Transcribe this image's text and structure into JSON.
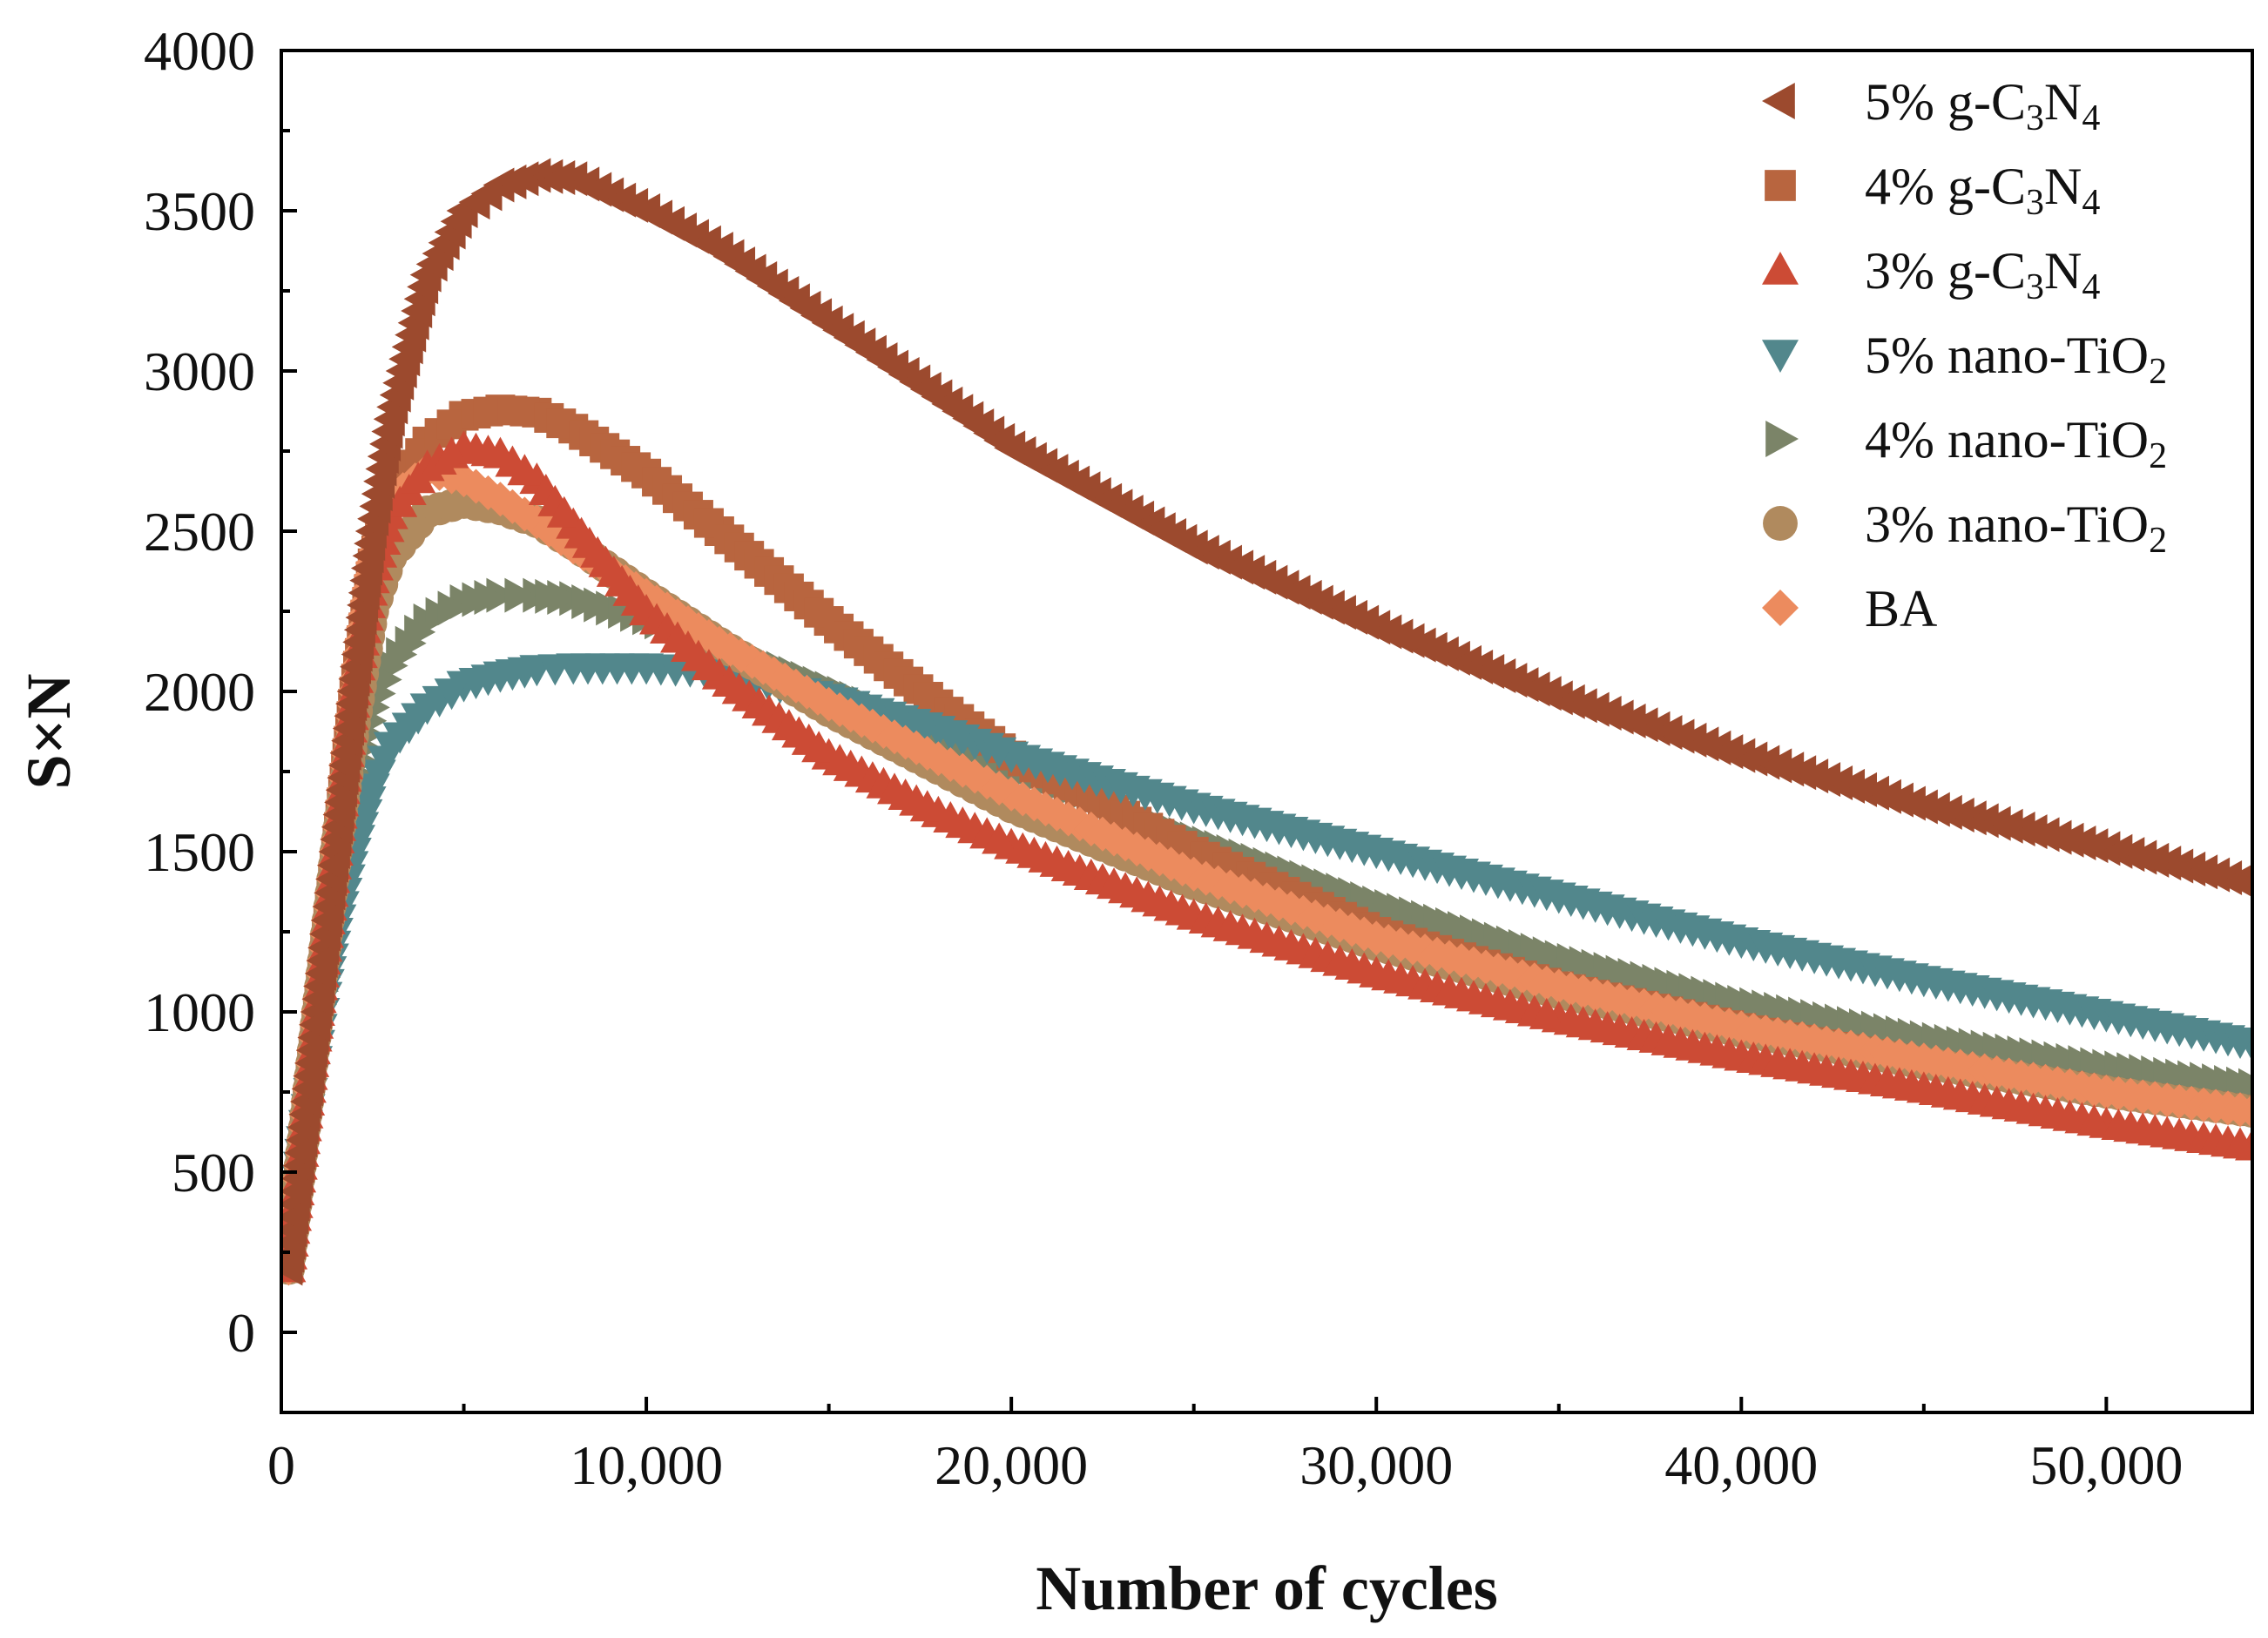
{
  "chart_data": {
    "type": "scatter",
    "title": "",
    "xlabel": "Number of cycles",
    "ylabel": "S×N",
    "xlim": [
      0,
      54000
    ],
    "ylim": [
      -250,
      4000
    ],
    "x_ticks": [
      0,
      10000,
      20000,
      30000,
      40000,
      50000
    ],
    "x_tick_labels": [
      "0",
      "10,000",
      "20,000",
      "30,000",
      "40,000",
      "50,000"
    ],
    "y_ticks": [
      0,
      500,
      1000,
      1500,
      2000,
      2500,
      3000,
      3500,
      4000
    ],
    "y_tick_labels": [
      "0",
      "500",
      "1000",
      "1500",
      "2000",
      "2500",
      "3000",
      "3500",
      "4000"
    ],
    "legend_position": "top-right",
    "grid": false,
    "series": [
      {
        "name": "5% g-C3N4",
        "name_main": "5% g-C",
        "name_sub1": "3",
        "name_mid": "N",
        "name_sub2": "4",
        "marker": "triangle-left",
        "color": "#9c4a2e",
        "x": [
          200,
          400,
          600,
          800,
          1000,
          1200,
          1500,
          2000,
          2500,
          3000,
          4000,
          5000,
          6000,
          7000,
          8000,
          10000,
          12000,
          15000,
          18000,
          20000,
          25000,
          30000,
          35000,
          40000,
          45000,
          50000,
          54000
        ],
        "y": [
          200,
          400,
          600,
          800,
          1000,
          1200,
          1500,
          2000,
          2500,
          2850,
          3300,
          3500,
          3580,
          3610,
          3600,
          3500,
          3380,
          3150,
          2920,
          2760,
          2450,
          2200,
          1980,
          1800,
          1640,
          1510,
          1400
        ]
      },
      {
        "name": "4% g-C3N4",
        "name_main": "4% g-C",
        "name_sub1": "3",
        "name_mid": "N",
        "name_sub2": "4",
        "marker": "square",
        "color": "#b8653f",
        "x": [
          200,
          400,
          600,
          800,
          1000,
          1200,
          1500,
          2000,
          2500,
          3000,
          4000,
          5000,
          6000,
          7000,
          8000,
          10000,
          12000,
          15000,
          18000,
          20000,
          25000,
          30000,
          35000,
          40000,
          45000,
          50000,
          54000
        ],
        "y": [
          200,
          400,
          600,
          800,
          1000,
          1200,
          1500,
          2000,
          2400,
          2600,
          2780,
          2860,
          2880,
          2870,
          2820,
          2680,
          2500,
          2220,
          1960,
          1800,
          1500,
          1250,
          1080,
          950,
          840,
          750,
          690
        ]
      },
      {
        "name": "3% g-C3N4",
        "name_main": "3% g-C",
        "name_sub1": "3",
        "name_mid": "N",
        "name_sub2": "4",
        "marker": "triangle-up",
        "color": "#cc4b35",
        "x": [
          200,
          400,
          600,
          800,
          1000,
          1200,
          1500,
          2000,
          2500,
          3000,
          4000,
          5000,
          6000,
          7000,
          8000,
          10000,
          12000,
          15000,
          18000,
          20000,
          25000,
          30000,
          35000,
          40000,
          45000,
          50000,
          54000
        ],
        "y": [
          200,
          400,
          600,
          800,
          1000,
          1200,
          1500,
          2000,
          2350,
          2550,
          2700,
          2760,
          2740,
          2660,
          2520,
          2250,
          2050,
          1800,
          1620,
          1520,
          1300,
          1120,
          980,
          860,
          760,
          650,
          580
        ]
      },
      {
        "name": "5% nano-TiO2",
        "name_main": "5% nano-TiO",
        "name_sub1": "2",
        "name_mid": "",
        "name_sub2": "",
        "marker": "triangle-down",
        "color": "#52878c",
        "x": [
          200,
          400,
          600,
          800,
          1000,
          1200,
          1500,
          2000,
          2500,
          3000,
          4000,
          5000,
          6000,
          7000,
          8000,
          10000,
          12000,
          15000,
          18000,
          20000,
          25000,
          30000,
          35000,
          40000,
          45000,
          50000,
          54000
        ],
        "y": [
          200,
          400,
          600,
          750,
          900,
          1050,
          1250,
          1500,
          1700,
          1830,
          1950,
          2020,
          2050,
          2070,
          2075,
          2075,
          2060,
          1980,
          1880,
          1800,
          1640,
          1500,
          1360,
          1220,
          1100,
          990,
          900
        ]
      },
      {
        "name": "4% nano-TiO2",
        "name_main": "4% nano-TiO",
        "name_sub1": "2",
        "name_mid": "",
        "name_sub2": "",
        "marker": "triangle-right",
        "color": "#7b8468",
        "x": [
          200,
          400,
          600,
          800,
          1000,
          1200,
          1500,
          2000,
          2500,
          3000,
          4000,
          5000,
          6000,
          7000,
          8000,
          10000,
          12000,
          15000,
          18000,
          20000,
          25000,
          30000,
          35000,
          40000,
          45000,
          50000,
          54000
        ],
        "y": [
          200,
          400,
          600,
          800,
          980,
          1150,
          1400,
          1700,
          1950,
          2080,
          2220,
          2280,
          2300,
          2300,
          2290,
          2230,
          2150,
          2010,
          1870,
          1760,
          1540,
          1340,
          1170,
          1030,
          920,
          830,
          770
        ]
      },
      {
        "name": "3% nano-TiO2",
        "name_main": "3% nano-TiO",
        "name_sub1": "2",
        "name_mid": "",
        "name_sub2": "",
        "marker": "circle",
        "color": "#b08a5e",
        "x": [
          200,
          400,
          600,
          800,
          1000,
          1200,
          1500,
          2000,
          2500,
          3000,
          4000,
          5000,
          6000,
          7000,
          8000,
          10000,
          12000,
          15000,
          18000,
          20000,
          25000,
          30000,
          35000,
          40000,
          45000,
          50000,
          54000
        ],
        "y": [
          200,
          400,
          600,
          800,
          1000,
          1200,
          1500,
          1900,
          2250,
          2420,
          2560,
          2590,
          2570,
          2530,
          2460,
          2300,
          2150,
          1940,
          1760,
          1640,
          1400,
          1210,
          1060,
          940,
          840,
          750,
          690
        ]
      },
      {
        "name": "BA",
        "name_main": "BA",
        "name_sub1": "",
        "name_mid": "",
        "name_sub2": "",
        "marker": "diamond",
        "color": "#ec8b5e",
        "x": [
          200,
          400,
          600,
          800,
          1000,
          1200,
          1500,
          2000,
          2500,
          3000,
          4000,
          5000,
          6000,
          7000,
          8000,
          10000,
          12000,
          15000,
          18000,
          20000,
          25000,
          30000,
          35000,
          40000,
          45000,
          50000,
          54000
        ],
        "y": [
          200,
          400,
          600,
          800,
          1000,
          1200,
          1500,
          2000,
          2400,
          2600,
          2690,
          2660,
          2600,
          2530,
          2450,
          2300,
          2150,
          1960,
          1790,
          1680,
          1430,
          1230,
          1080,
          950,
          850,
          750,
          690
        ]
      }
    ]
  }
}
